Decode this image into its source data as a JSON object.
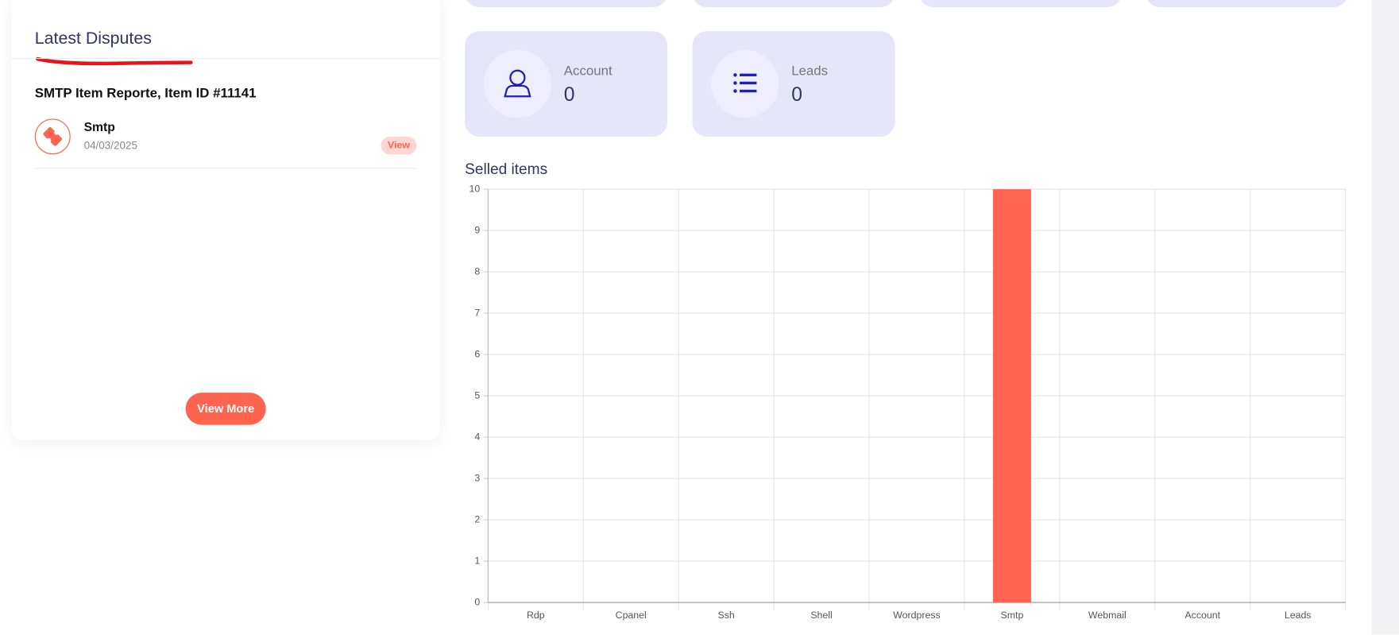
{
  "disputes": {
    "title": "Latest Disputes",
    "items": [
      {
        "heading": "SMTP Item Reporte, Item ID #11141",
        "name": "Smtp",
        "date": "04/03/2025",
        "action": "View"
      }
    ],
    "more": "View More"
  },
  "stats": [
    {
      "label": "Account",
      "value": 0
    },
    {
      "label": "Leads",
      "value": 0
    }
  ],
  "chart_data": {
    "type": "bar",
    "title": "Selled items",
    "categories": [
      "Rdp",
      "Cpanel",
      "Ssh",
      "Shell",
      "Wordpress",
      "Smtp",
      "Webmail",
      "Account",
      "Leads"
    ],
    "values": [
      0,
      0,
      0,
      0,
      0,
      10,
      0,
      0,
      0
    ],
    "color": "#ff6450",
    "ylim": [
      0,
      10
    ],
    "yticks": [
      0,
      1,
      2,
      3,
      4,
      5,
      6,
      7,
      8,
      9,
      10
    ],
    "grid": true
  }
}
